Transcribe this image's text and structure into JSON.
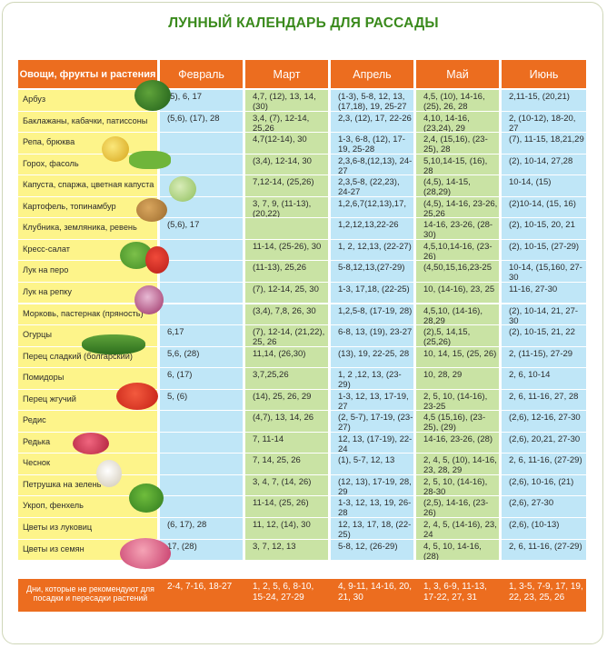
{
  "title": "ЛУННЫЙ КАЛЕНДАРЬ ДЛЯ РАССАДЫ",
  "header": {
    "first": "Овощи, фрукты и растения",
    "months": [
      "Февраль",
      "Март",
      "Апрель",
      "Май",
      "Июнь"
    ]
  },
  "rows": [
    {
      "name": "Арбуз",
      "cells": [
        "(5), 6, 17",
        "4,7, (12), 13, 14, (30)",
        "(1-3), 5-8, 12, 13,(17,18), 19, 25-27",
        "4,5, (10), 14-16, (25), 26, 28",
        "2,11-15, (20,21)"
      ]
    },
    {
      "name": "Баклажаны, кабачки, патиссоны",
      "cells": [
        "(5,6), (17), 28",
        "3,4, (7), 12-14, 25,26",
        "2,3, (12), 17, 22-26",
        "4,10, 14-16, (23,24), 29",
        "2, (10-12), 18-20, 27"
      ]
    },
    {
      "name": "Репа, брюква",
      "cells": [
        "",
        "4,7(12-14), 30",
        "1-3, 6-8, (12), 17-19, 25-28",
        "2,4, (15,16), (23-25), 28",
        "(7), 11-15, 18,21,29"
      ]
    },
    {
      "name": "Горох, фасоль",
      "cells": [
        "",
        "(3,4), 12-14, 30",
        "2,3,6-8,(12,13), 24-27",
        "5,10,14-15, (16), 28",
        "(2), 10-14, 27,28"
      ]
    },
    {
      "name": "Капуста, спаржа, цветная капуста",
      "cells": [
        "",
        "7,12-14, (25,26)",
        "2,3,5-8, (22,23), 24-27",
        "(4,5), 14-15, (28,29)",
        "10-14, (15)"
      ]
    },
    {
      "name": "Картофель, топинамбур",
      "cells": [
        "",
        "3, 7, 9, (11-13), (20,22)",
        "1,2,6,7(12,13),17,",
        "(4,5), 14-16, 23-26, 25,26",
        "(2)10-14, (15, 16)"
      ]
    },
    {
      "name": "Клубника, земляника, ревень",
      "cells": [
        "(5,6), 17",
        "",
        "1,2,12,13,22-26",
        "14-16, 23-26, (28-30)",
        "(2), 10-15, 20, 21"
      ]
    },
    {
      "name": "Кресс-салат",
      "cells": [
        "",
        "11-14, (25-26), 30",
        "1, 2, 12,13, (22-27)",
        "4,5,10,14-16, (23-26)",
        "(2), 10-15, (27-29)"
      ]
    },
    {
      "name": "Лук на перо",
      "cells": [
        "",
        "(11-13), 25,26",
        "5-8,12,13,(27-29)",
        "(4,50,15,16,23-25",
        "10-14, (15,160, 27-30"
      ]
    },
    {
      "name": "Лук на репку",
      "cells": [
        "",
        "(7), 12-14, 25, 30",
        "1-3, 17,18, (22-25)",
        "10, (14-16), 23, 25",
        "11-16, 27-30"
      ]
    },
    {
      "name": "Морковь, пастернак (пряность)",
      "cells": [
        "",
        "(3,4), 7,8, 26, 30",
        "1,2,5-8, (17-19, 28)",
        "4,5,10, (14-16), 28,29",
        "(2), 10-14, 21, 27-30"
      ]
    },
    {
      "name": "Огурцы",
      "cells": [
        "6,17",
        "(7), 12-14, (21,22), 25, 26",
        "6-8, 13, (19), 23-27",
        "(2),5, 14,15, (25,26)",
        "(2), 10-15, 21, 22"
      ]
    },
    {
      "name": "Перец сладкий (болгарский)",
      "cells": [
        "5,6, (28)",
        "11,14, (26,30)",
        "(13), 19, 22-25, 28",
        "10, 14, 15, (25, 26)",
        "2, (11-15), 27-29"
      ]
    },
    {
      "name": "Помидоры",
      "cells": [
        "6, (17)",
        "3,7,25,26",
        "1, 2 ,12, 13, (23-29)",
        "10, 28, 29",
        "2, 6, 10-14"
      ]
    },
    {
      "name": "Перец жгучий",
      "cells": [
        "5, (6)",
        "(14), 25, 26, 29",
        "1-3, 12, 13, 17-19, 27",
        "2, 5, 10, (14-16), 23-25",
        "2, 6, 11-16, 27, 28"
      ]
    },
    {
      "name": "Редис",
      "cells": [
        "",
        "(4,7), 13, 14, 26",
        "(2, 5-7), 17-19, (23-27)",
        "4,5 (15,16), (23-25), (29)",
        "(2,6), 12-16, 27-30"
      ]
    },
    {
      "name": "Редька",
      "cells": [
        "",
        "7, 11-14",
        "12, 13, (17-19), 22-24",
        "14-16, 23-26, (28)",
        "(2,6), 20,21, 27-30"
      ]
    },
    {
      "name": "Чеснок",
      "cells": [
        "",
        "7, 14, 25, 26",
        "(1), 5-7, 12, 13",
        "2, 4, 5, (10), 14-16, 23, 28, 29",
        "2, 6, 11-16, (27-29)"
      ]
    },
    {
      "name": "Петрушка на зелень",
      "cells": [
        "",
        "3, 4, 7, (14, 26)",
        "(12, 13), 17-19, 28, 29",
        "2, 5, 10, (14-16), 28-30",
        "(2,6), 10-16, (21)"
      ]
    },
    {
      "name": "Укроп, фенхель",
      "cells": [
        "",
        "11-14, (25, 26)",
        "1-3, 12, 13, 19, 26-28",
        "(2,5), 14-16, (23-26)",
        "(2,6), 27-30"
      ]
    },
    {
      "name": "Цветы из луковиц",
      "cells": [
        "(6, 17), 28",
        "11, 12, (14), 30",
        "12, 13, 17, 18, (22-25)",
        "2, 4, 5, (14-16), 23, 24",
        "(2,6), (10-13)"
      ]
    },
    {
      "name": "Цветы из семян",
      "cells": [
        "17, (28)",
        "3, 7, 12, 13",
        "5-8, 12, (26-29)",
        "4, 5, 10, 14-16, (28)",
        "2, 6, 11-16, (27-29)"
      ]
    }
  ],
  "footer": {
    "label": "Дни, которые не рекомендуют для посадки и пересадки растений",
    "cells": [
      "2-4, 7-16, 18-27",
      "1, 2, 5, 6, 8-10, 15-24, 27-29",
      "4, 9-11, 14-16, 20, 21, 30",
      "1, 3, 6-9, 11-13, 17-22, 27, 31",
      "1, 3-5, 7-9, 17, 19, 22, 23, 25, 26"
    ]
  }
}
